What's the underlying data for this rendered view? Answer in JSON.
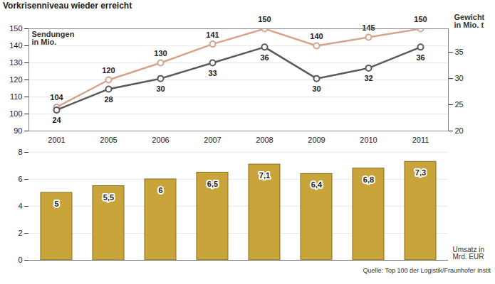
{
  "chart_data": [
    {
      "type": "line",
      "subtitle": "Vorkrisenniveau wieder erreicht",
      "categories": [
        "2001",
        "2005",
        "2006",
        "2007",
        "2008",
        "2009",
        "2010",
        "2011"
      ],
      "series": [
        {
          "name": "Sendungen in Mio.",
          "color": "#d4a48c",
          "marker": "circle",
          "values": [
            104,
            120,
            130,
            141,
            150,
            140,
            145,
            150
          ]
        },
        {
          "name": "Gewicht in Mio. t",
          "color": "#5a5a5a",
          "marker": "circle",
          "axis": "y2",
          "values": [
            24,
            28,
            30,
            33,
            36,
            30,
            32,
            36
          ]
        }
      ],
      "ylim": [
        90,
        150
      ],
      "yticks": [
        90,
        100,
        110,
        120,
        130,
        140,
        150
      ],
      "y2lim": [
        20,
        39.5
      ],
      "y2ticks": [
        20,
        25,
        30,
        35
      ],
      "data_labels": true,
      "grid": true
    },
    {
      "type": "bar",
      "categories": [
        "2001",
        "2005",
        "2006",
        "2007",
        "2008",
        "2009",
        "2010",
        "2011"
      ],
      "values": [
        5,
        5.5,
        6,
        6.5,
        7.1,
        6.4,
        6.8,
        7.3
      ],
      "value_labels": [
        "5",
        "5,5",
        "6",
        "6,5",
        "7,1",
        "6,4",
        "6,8",
        "7,3"
      ],
      "ylabel": "Umsatz in Mrd. EUR",
      "color": "#c9a43a",
      "ylim": [
        0,
        8
      ],
      "yticks": [
        0,
        2,
        4,
        6,
        8
      ],
      "data_labels": true,
      "grid": true,
      "tick_labels": "y",
      "caption": "Quelle: Top 100 der Logistik/Fraunhofer Instit"
    }
  ]
}
